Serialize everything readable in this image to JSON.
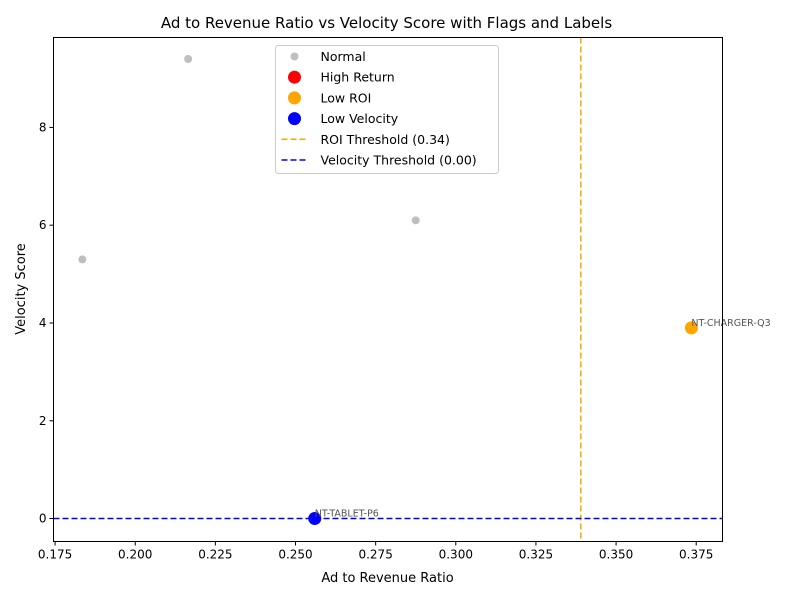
{
  "chart_data": {
    "type": "scatter",
    "title": "Ad to Revenue Ratio vs Velocity Score with Flags and Labels",
    "xlabel": "Ad to Revenue Ratio",
    "ylabel": "Velocity Score",
    "xlim": [
      0.1745,
      0.3832
    ],
    "ylim": [
      -0.47,
      9.84
    ],
    "x_ticks": [
      "0.175",
      "0.200",
      "0.225",
      "0.250",
      "0.275",
      "0.300",
      "0.325",
      "0.350",
      "0.375"
    ],
    "x_tick_values": [
      0.175,
      0.2,
      0.225,
      0.25,
      0.275,
      0.3,
      0.325,
      0.35,
      0.375
    ],
    "y_ticks": [
      "0",
      "2",
      "4",
      "6",
      "8"
    ],
    "y_tick_values": [
      0,
      2,
      4,
      6,
      8
    ],
    "grid": false,
    "legend_position": "top-center",
    "series": [
      {
        "name": "Normal",
        "color": "#a9a9a9",
        "marker": "small",
        "points": [
          {
            "x": 0.1835,
            "y": 5.3,
            "label": ""
          },
          {
            "x": 0.2165,
            "y": 9.4,
            "label": ""
          },
          {
            "x": 0.2875,
            "y": 6.1,
            "label": ""
          }
        ]
      },
      {
        "name": "High Return",
        "color": "#ff0000",
        "marker": "large",
        "points": []
      },
      {
        "name": "Low ROI",
        "color": "#ffa500",
        "marker": "large",
        "points": [
          {
            "x": 0.3735,
            "y": 3.9,
            "label": "NT-CHARGER-Q3"
          }
        ]
      },
      {
        "name": "Low Velocity",
        "color": "#0000ff",
        "marker": "large",
        "points": [
          {
            "x": 0.256,
            "y": 0.0,
            "label": "NT-TABLET-P6"
          }
        ]
      }
    ],
    "reference_lines": [
      {
        "name": "ROI Threshold (0.34)",
        "orientation": "vertical",
        "value": 0.339,
        "color": "#ffa500",
        "style": "dashed"
      },
      {
        "name": "Velocity Threshold (0.00)",
        "orientation": "horizontal",
        "value": 0.0,
        "color": "#0000ff",
        "style": "dashed"
      }
    ]
  }
}
